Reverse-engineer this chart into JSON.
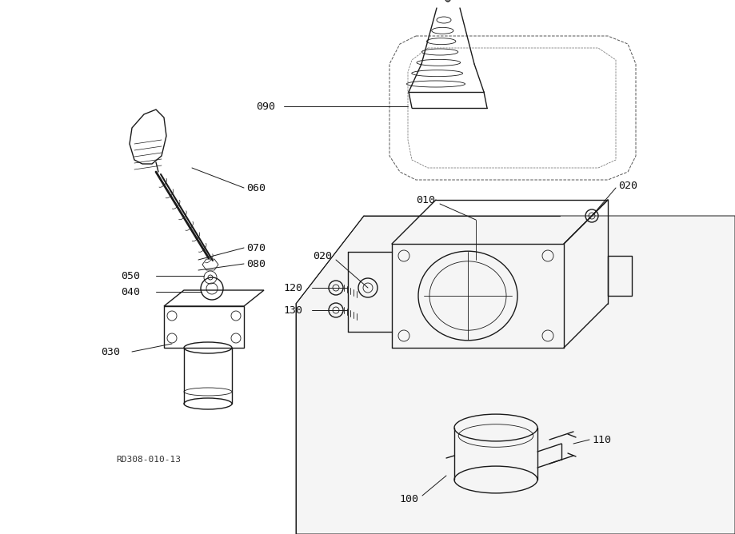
{
  "bg_color": "#ffffff",
  "line_color": "#1a1a1a",
  "label_color": "#111111",
  "ref_code": "RD308-010-13",
  "figsize": [
    9.19,
    6.68
  ],
  "dpi": 100
}
